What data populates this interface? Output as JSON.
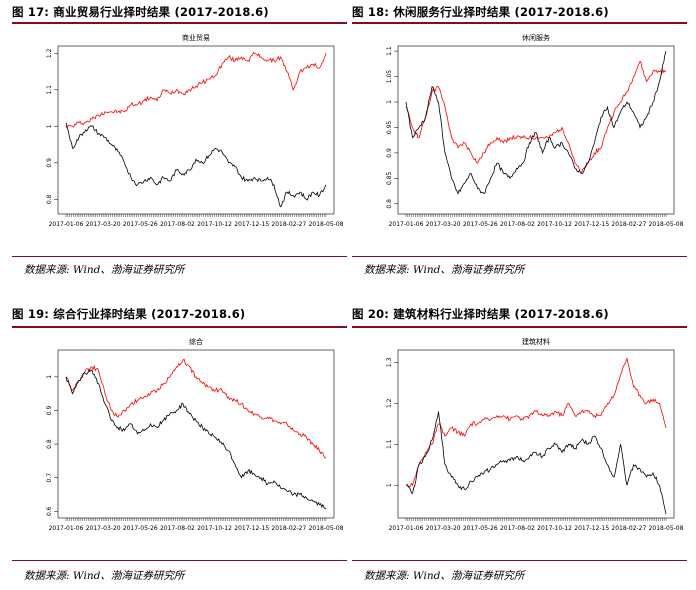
{
  "figures": [
    {
      "title": "图 17: 商业贸易行业择时结果 (2017-2018.6)",
      "source": "数据来源: Wind、渤海证券研究所",
      "chart_data": {
        "type": "line",
        "title": "商业贸易",
        "xlabel": "",
        "ylabel": "",
        "x_ticks": [
          "2017-01-06",
          "2017-03-20",
          "2017-05-26",
          "2017-08-02",
          "2017-10-12",
          "2017-12-15",
          "2018-02-27",
          "2018-05-08"
        ],
        "y_ticks": [
          0.8,
          0.9,
          1.0,
          1.1,
          1.2
        ],
        "ylim": [
          0.76,
          1.22
        ],
        "series": [
          {
            "color": "#ff0000",
            "values": [
              1.0,
              1.0,
              1.01,
              1.01,
              1.02,
              1.03,
              1.04,
              1.04,
              1.04,
              1.04,
              1.06,
              1.06,
              1.07,
              1.08,
              1.07,
              1.1,
              1.09,
              1.1,
              1.09,
              1.1,
              1.11,
              1.12,
              1.13,
              1.14,
              1.17,
              1.19,
              1.18,
              1.19,
              1.18,
              1.2,
              1.19,
              1.18,
              1.18,
              1.19,
              1.15,
              1.1,
              1.15,
              1.16,
              1.17,
              1.16,
              1.2
            ]
          },
          {
            "color": "#000000",
            "values": [
              1.01,
              0.94,
              0.97,
              0.99,
              1.0,
              0.98,
              0.97,
              0.95,
              0.93,
              0.9,
              0.86,
              0.84,
              0.85,
              0.86,
              0.84,
              0.86,
              0.85,
              0.88,
              0.87,
              0.88,
              0.91,
              0.9,
              0.92,
              0.94,
              0.93,
              0.9,
              0.89,
              0.86,
              0.85,
              0.86,
              0.85,
              0.86,
              0.84,
              0.78,
              0.82,
              0.81,
              0.82,
              0.8,
              0.82,
              0.81,
              0.84
            ]
          }
        ]
      }
    },
    {
      "title": "图 18: 休闲服务行业择时结果 (2017-2018.6)",
      "source": "数据来源: Wind、渤海证券研究所",
      "chart_data": {
        "type": "line",
        "title": "休闲服务",
        "xlabel": "",
        "ylabel": "",
        "x_ticks": [
          "2017-01-06",
          "2017-03-20",
          "2017-05-26",
          "2017-08-02",
          "2017-10-12",
          "2017-12-15",
          "2018-02-27",
          "2018-05-08"
        ],
        "y_ticks": [
          0.8,
          0.85,
          0.9,
          0.95,
          1.0,
          1.05,
          1.1
        ],
        "ylim": [
          0.78,
          1.11
        ],
        "series": [
          {
            "color": "#ff0000",
            "values": [
              0.99,
              0.95,
              0.93,
              0.97,
              1.02,
              1.03,
              0.99,
              0.93,
              0.91,
              0.92,
              0.9,
              0.88,
              0.9,
              0.92,
              0.93,
              0.92,
              0.93,
              0.93,
              0.93,
              0.93,
              0.93,
              0.93,
              0.93,
              0.94,
              0.95,
              0.92,
              0.88,
              0.86,
              0.88,
              0.9,
              0.91,
              0.95,
              0.98,
              1.0,
              1.02,
              1.05,
              1.08,
              1.04,
              1.06,
              1.06,
              1.06
            ]
          },
          {
            "color": "#000000",
            "values": [
              1.0,
              0.93,
              0.95,
              0.97,
              1.03,
              1.0,
              0.9,
              0.85,
              0.82,
              0.84,
              0.86,
              0.83,
              0.82,
              0.85,
              0.88,
              0.86,
              0.85,
              0.87,
              0.88,
              0.92,
              0.94,
              0.9,
              0.93,
              0.91,
              0.92,
              0.9,
              0.87,
              0.86,
              0.88,
              0.92,
              0.97,
              0.99,
              0.95,
              0.98,
              1.0,
              0.98,
              0.95,
              0.97,
              1.0,
              1.04,
              1.1
            ]
          }
        ]
      }
    },
    {
      "title": "图 19: 综合行业择时结果 (2017-2018.6)",
      "source": "数据来源: Wind、渤海证券研究所",
      "chart_data": {
        "type": "line",
        "title": "综合",
        "xlabel": "",
        "ylabel": "",
        "x_ticks": [
          "2017-01-06",
          "2017-03-20",
          "2017-05-26",
          "2017-08-02",
          "2017-10-12",
          "2017-12-15",
          "2018-02-27",
          "2018-05-08"
        ],
        "y_ticks": [
          0.6,
          0.7,
          0.8,
          0.9,
          1.0
        ],
        "ylim": [
          0.58,
          1.08
        ],
        "series": [
          {
            "color": "#ff0000",
            "values": [
              1.0,
              0.96,
              0.99,
              1.02,
              1.03,
              1.02,
              0.95,
              0.9,
              0.88,
              0.9,
              0.92,
              0.93,
              0.94,
              0.95,
              0.96,
              0.98,
              1.0,
              1.03,
              1.05,
              1.03,
              1.0,
              0.98,
              0.97,
              0.96,
              0.96,
              0.94,
              0.93,
              0.92,
              0.9,
              0.89,
              0.88,
              0.88,
              0.87,
              0.86,
              0.86,
              0.84,
              0.83,
              0.82,
              0.8,
              0.78,
              0.76
            ]
          },
          {
            "color": "#000000",
            "values": [
              1.0,
              0.95,
              0.99,
              1.01,
              1.02,
              0.98,
              0.92,
              0.87,
              0.85,
              0.84,
              0.86,
              0.83,
              0.84,
              0.86,
              0.85,
              0.87,
              0.89,
              0.9,
              0.92,
              0.89,
              0.87,
              0.85,
              0.83,
              0.82,
              0.8,
              0.78,
              0.74,
              0.7,
              0.72,
              0.71,
              0.7,
              0.68,
              0.69,
              0.67,
              0.66,
              0.65,
              0.65,
              0.64,
              0.63,
              0.62,
              0.61
            ]
          }
        ]
      }
    },
    {
      "title": "图 20: 建筑材料行业择时结果 (2017-2018.6)",
      "source": "数据来源: Wind、渤海证券研究所",
      "chart_data": {
        "type": "line",
        "title": "建筑材料",
        "xlabel": "",
        "ylabel": "",
        "x_ticks": [
          "2017-01-06",
          "2017-03-20",
          "2017-05-26",
          "2017-08-02",
          "2017-10-12",
          "2017-12-15",
          "2018-02-27",
          "2018-05-08"
        ],
        "y_ticks": [
          1.0,
          1.1,
          1.2,
          1.3
        ],
        "ylim": [
          0.92,
          1.33
        ],
        "series": [
          {
            "color": "#ff0000",
            "values": [
              1.0,
              1.0,
              1.05,
              1.08,
              1.1,
              1.15,
              1.12,
              1.14,
              1.13,
              1.12,
              1.15,
              1.15,
              1.16,
              1.16,
              1.17,
              1.17,
              1.16,
              1.17,
              1.16,
              1.17,
              1.18,
              1.17,
              1.17,
              1.18,
              1.17,
              1.2,
              1.17,
              1.18,
              1.18,
              1.17,
              1.17,
              1.2,
              1.22,
              1.27,
              1.31,
              1.24,
              1.22,
              1.2,
              1.21,
              1.2,
              1.14
            ]
          },
          {
            "color": "#000000",
            "values": [
              1.0,
              0.98,
              1.05,
              1.07,
              1.11,
              1.18,
              1.05,
              1.02,
              1.0,
              0.99,
              1.01,
              1.02,
              1.03,
              1.04,
              1.05,
              1.06,
              1.06,
              1.07,
              1.06,
              1.07,
              1.08,
              1.07,
              1.09,
              1.1,
              1.08,
              1.1,
              1.09,
              1.11,
              1.1,
              1.12,
              1.09,
              1.05,
              1.02,
              1.1,
              1.0,
              1.05,
              1.04,
              1.02,
              1.03,
              1.0,
              0.93
            ]
          }
        ]
      }
    }
  ]
}
